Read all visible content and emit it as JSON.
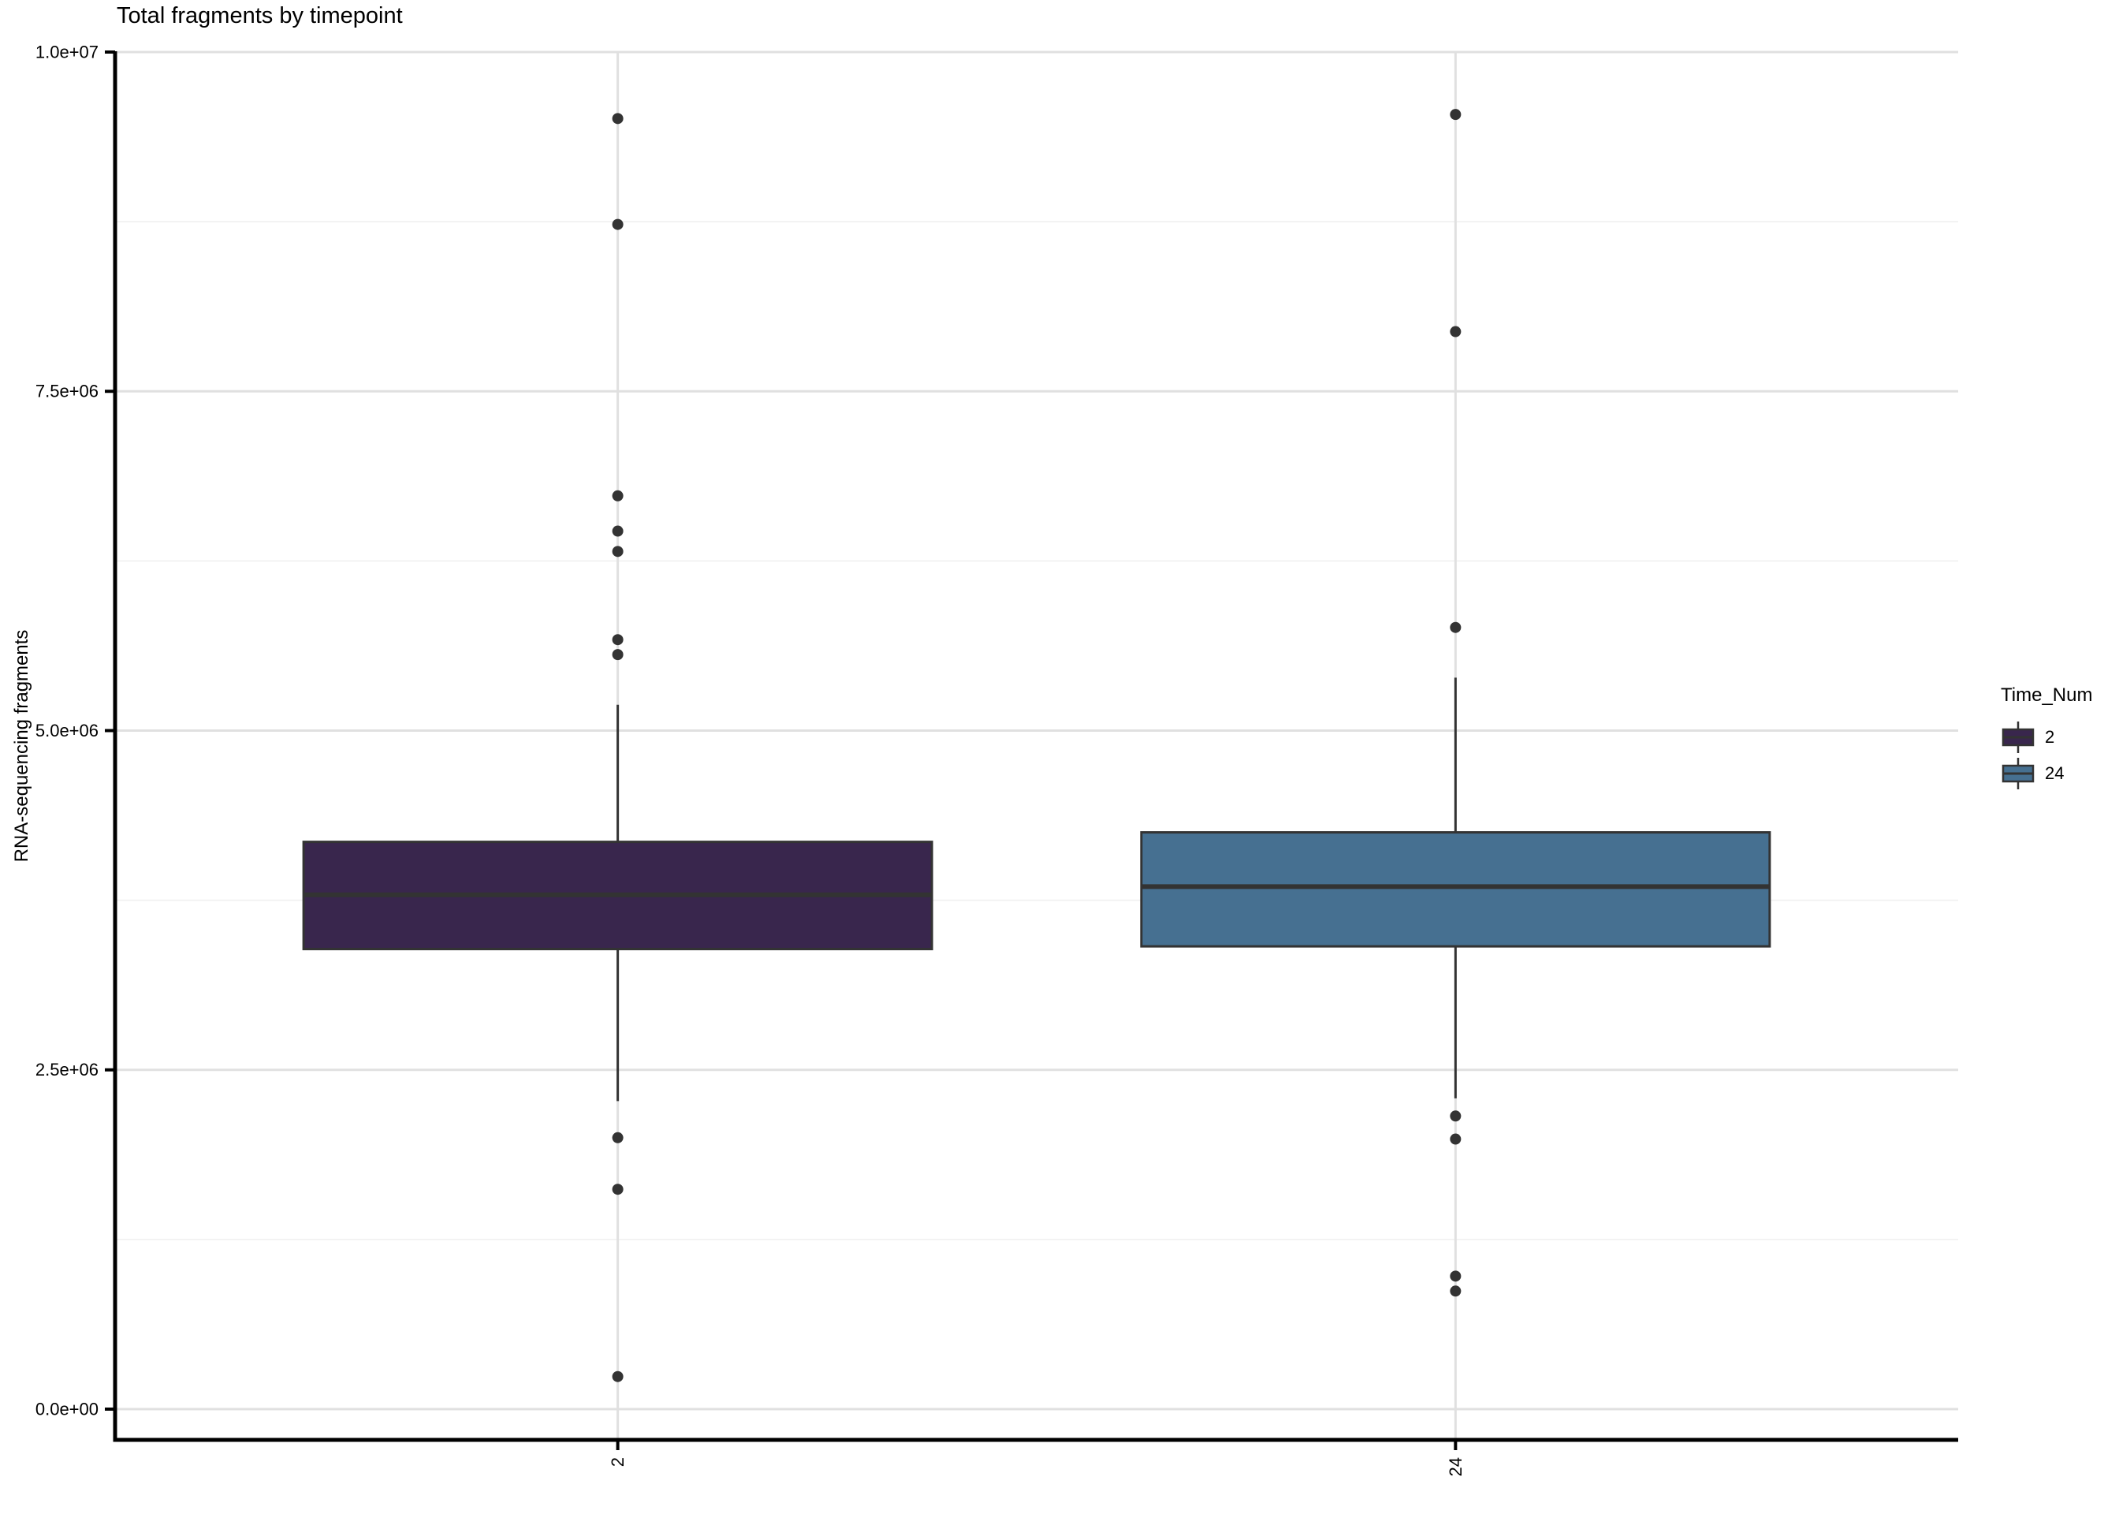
{
  "chart_data": {
    "type": "boxplot",
    "title": "Total fragments by timepoint",
    "xlabel": "",
    "ylabel": "RNA-sequencing fragments",
    "x_categories": [
      "2",
      "24"
    ],
    "ylim": [
      0,
      10000000
    ],
    "y_ticks": [
      {
        "label": "0.0e+00",
        "value": 0
      },
      {
        "label": "2.5e+06",
        "value": 2500000
      },
      {
        "label": "5.0e+06",
        "value": 5000000
      },
      {
        "label": "7.5e+06",
        "value": 7500000
      },
      {
        "label": "1.0e+07",
        "value": 10000000
      }
    ],
    "grid": {
      "horizontal_major": true,
      "horizontal_minor": true,
      "vertical_at_categories": true
    },
    "legend": {
      "title": "Time_Num",
      "position": "right",
      "entries": [
        "2",
        "24"
      ]
    },
    "style": {
      "box_stroke": "#333333",
      "point_color": "#333333",
      "axis_color": "#000000",
      "grid_major_color": "#e0e0e0",
      "grid_minor_color": "#efefef"
    },
    "series": [
      {
        "name": "2",
        "fill": "#39264D",
        "q1": 3390000,
        "median": 3790000,
        "q3": 4180000,
        "whisker_low": 2270000,
        "whisker_high": 5190000,
        "outliers": [
          9510000,
          8730000,
          6730000,
          6470000,
          6320000,
          5670000,
          5560000,
          2000000,
          1620000,
          240000
        ]
      },
      {
        "name": "24",
        "fill": "#467091",
        "q1": 3410000,
        "median": 3850000,
        "q3": 4250000,
        "whisker_low": 2290000,
        "whisker_high": 5390000,
        "outliers": [
          9540000,
          7940000,
          5760000,
          2160000,
          1990000,
          980000,
          870000
        ]
      }
    ]
  }
}
